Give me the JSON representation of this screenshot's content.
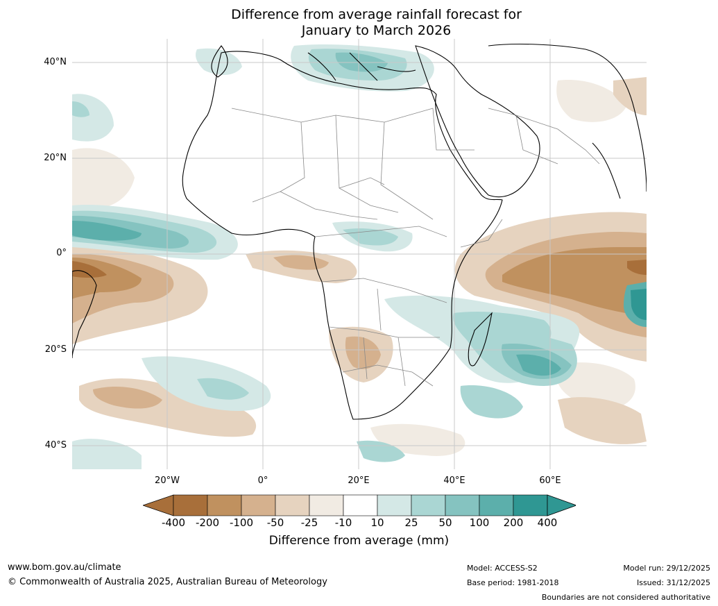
{
  "title_line1": "Difference from average rainfall forecast for",
  "title_line2": "January to March 2026",
  "lat_labels": [
    "40°N",
    "20°N",
    "0°",
    "20°S",
    "40°S"
  ],
  "lon_labels": [
    "20°W",
    "0°",
    "20°E",
    "40°E",
    "60°E"
  ],
  "colorbar": {
    "labels": [
      "-400",
      "-200",
      "-100",
      "-50",
      "-25",
      "-10",
      "10",
      "25",
      "50",
      "100",
      "200",
      "400"
    ],
    "colors": [
      "#a86f3a",
      "#c0915f",
      "#d5b18e",
      "#e6d3bf",
      "#f1ebe3",
      "#ffffff",
      "#d4e8e6",
      "#aad6d3",
      "#85c3c0",
      "#5cafab",
      "#2f9793"
    ],
    "title": "Difference from average (mm)"
  },
  "footer": {
    "website": "www.bom.gov.au/climate",
    "copyright": "© Commonwealth of Australia 2025, Australian Bureau of Meteorology",
    "model": "Model: ACCESS-S2",
    "base_period": "Base period: 1981-2018",
    "model_run": "Model run: 29/12/2025",
    "issued": "Issued: 31/12/2025",
    "disclaimer": "Boundaries are not considered authoritative"
  }
}
